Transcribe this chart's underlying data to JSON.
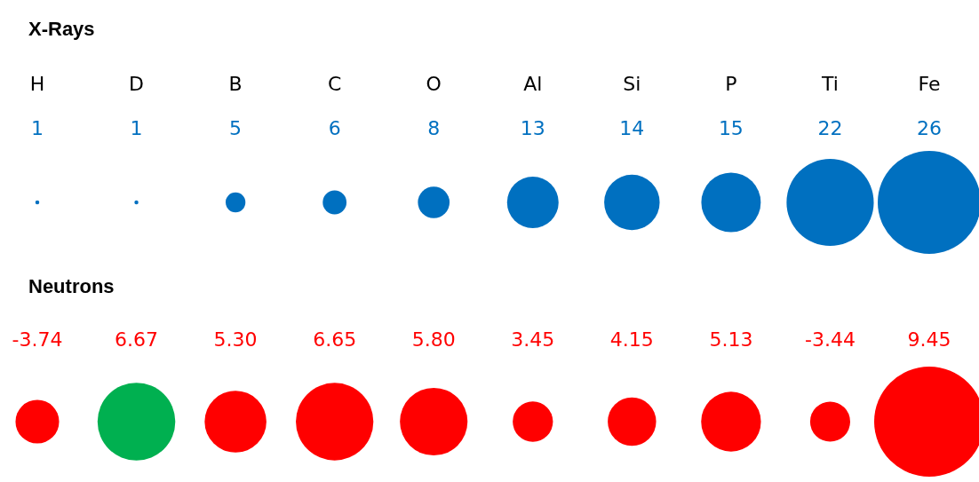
{
  "chart_data": [
    {
      "type": "other",
      "title": "X-Rays",
      "categories": [
        "H",
        "D",
        "B",
        "C",
        "O",
        "Al",
        "Si",
        "P",
        "Ti",
        "Fe"
      ],
      "series": [
        {
          "color": "#0070c0",
          "values": [
            1,
            1,
            5,
            6,
            8,
            13,
            14,
            15,
            22,
            26
          ]
        }
      ],
      "data_labels": true
    },
    {
      "type": "other",
      "title": "Neutrons",
      "categories": [
        null,
        null,
        null,
        null,
        null,
        null,
        null,
        null,
        null,
        null
      ],
      "series": [
        {
          "color": "#ff0000",
          "colors": [
            "#ff0000",
            "#00b050",
            "#ff0000",
            "#ff0000",
            "#ff0000",
            "#ff0000",
            "#ff0000",
            "#ff0000",
            "#ff0000",
            "#ff0000"
          ],
          "values": [
            -3.74,
            6.67,
            5.3,
            6.65,
            5.8,
            3.45,
            4.15,
            5.13,
            -3.44,
            9.45
          ],
          "value_labels": [
            "-3.74",
            "6.67",
            "5.30",
            "6.65",
            "5.80",
            "3.45",
            "4.15",
            "5.13",
            "-3.44",
            "9.45"
          ]
        }
      ]
    }
  ]
}
